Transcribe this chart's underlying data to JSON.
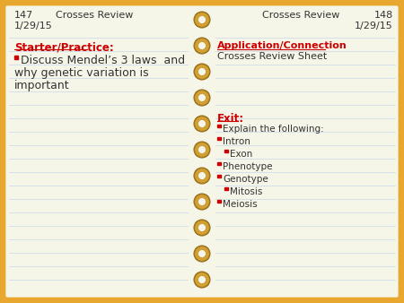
{
  "bg_color": "#E8A830",
  "page_color": "#F5F5E8",
  "line_color": "#C8D8E8",
  "red_color": "#CC0000",
  "text_color": "#333333",
  "ring_color": "#D4A030",
  "ring_shadow": "#8B6010",
  "left_page_num": "147",
  "right_page_num": "148",
  "date": "1/29/15",
  "topic": "Crosses Review",
  "left_header": "Starter/Practice:",
  "right_header1": "Application/Connection",
  "right_sub1": "Crosses Review Sheet",
  "right_header2": "Exit:",
  "bullet_line1": "Discuss Mendel’s 3 laws  and",
  "bullet_line2": "why genetic variation is",
  "bullet_line3": "important",
  "exit_items": [
    "Explain the following:",
    "Intron",
    "Exon",
    "Phenotype",
    "Genotype",
    "Mitosis",
    "Meiosis"
  ],
  "exit_indents": [
    0,
    0,
    8,
    0,
    0,
    8,
    0
  ]
}
